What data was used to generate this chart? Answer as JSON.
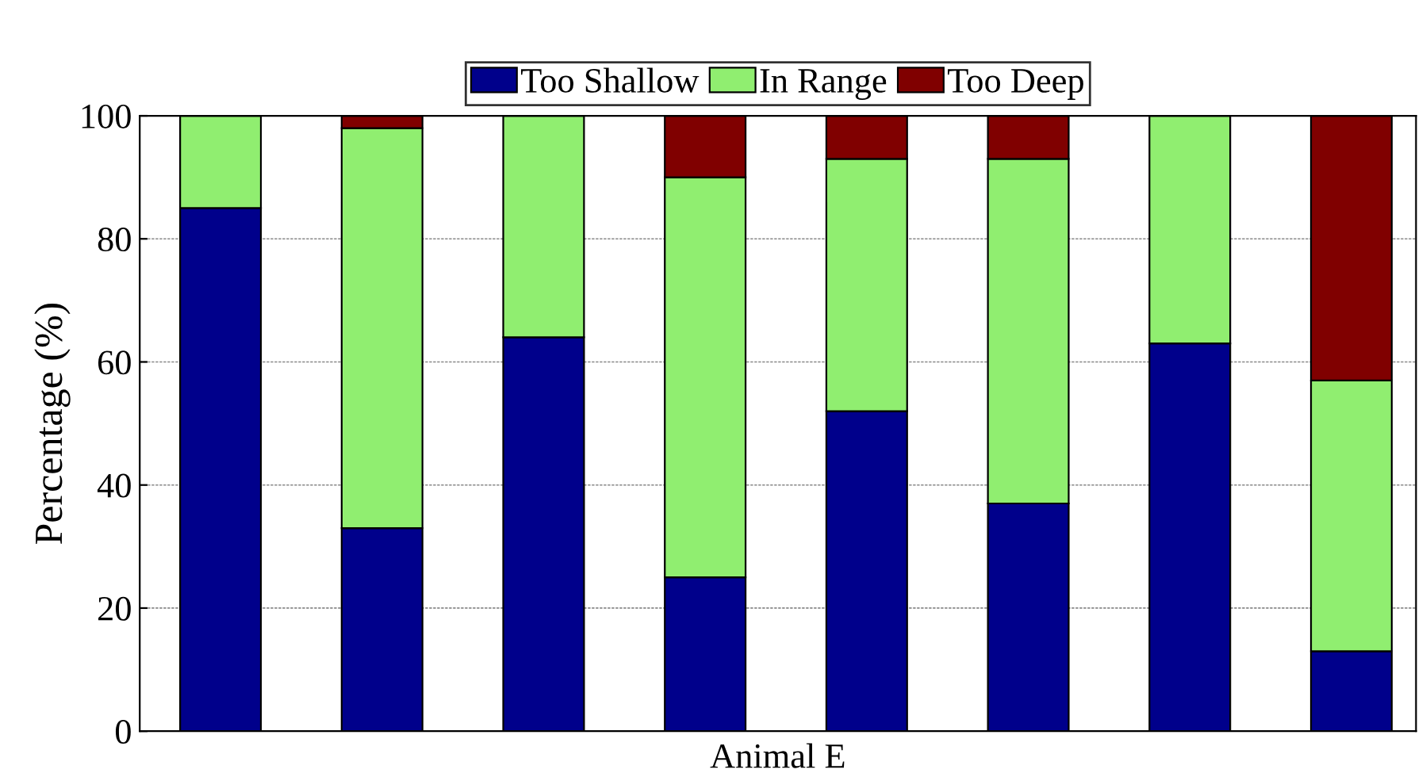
{
  "chart_data": {
    "type": "bar",
    "stacked": true,
    "xlabel": "Animal E",
    "ylabel": "Percentage (%)",
    "categories": [
      null,
      null,
      null,
      null,
      null,
      null,
      null,
      null
    ],
    "series": [
      {
        "name": "Too Shallow",
        "color": "#00008b",
        "values": [
          85,
          33,
          64,
          25,
          52,
          37,
          63,
          13
        ]
      },
      {
        "name": "In Range",
        "color": "#90ee70",
        "values": [
          15,
          65,
          36,
          65,
          41,
          56,
          37,
          44
        ]
      },
      {
        "name": "Too Deep",
        "color": "#800000",
        "values": [
          null,
          2,
          null,
          10,
          7,
          7,
          null,
          43
        ]
      }
    ],
    "ylim": [
      0,
      100
    ],
    "yticks": [
      0,
      20,
      40,
      60,
      80,
      100
    ],
    "grid": "y",
    "legend": "top"
  }
}
